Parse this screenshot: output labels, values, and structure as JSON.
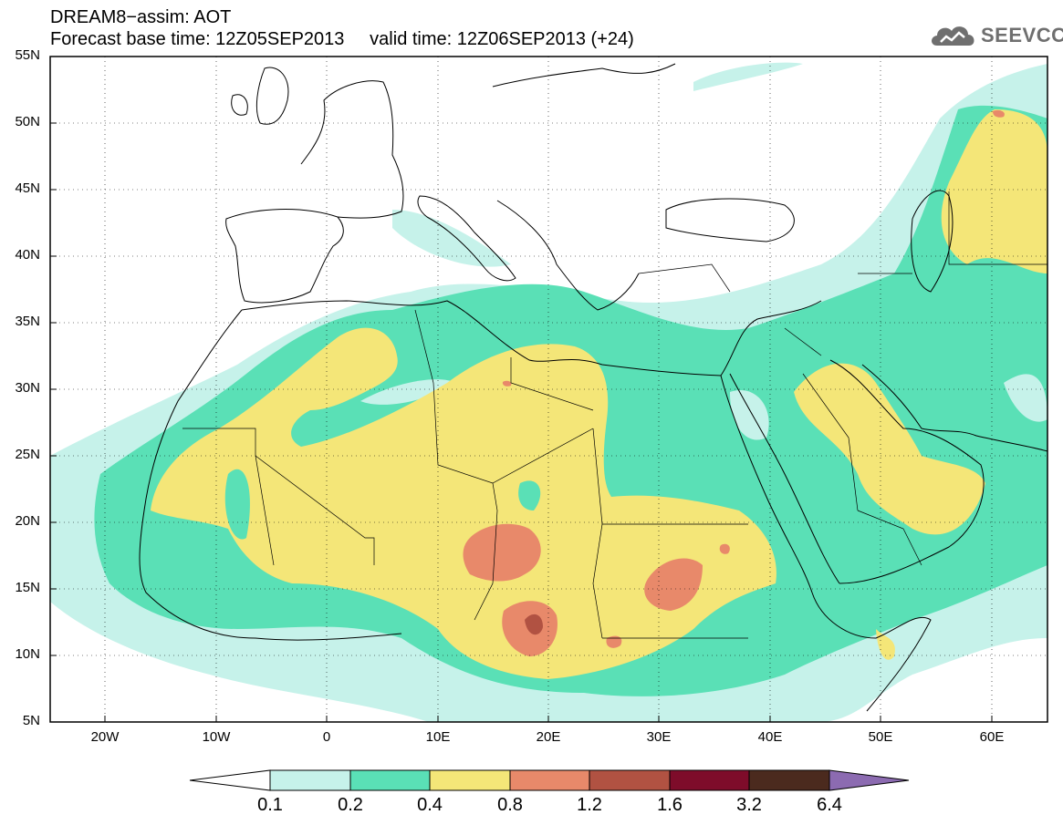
{
  "header": {
    "title_line1": "DREAM8−assim: AOT",
    "title_line2": "Forecast base time: 12Z05SEP2013     valid time: 12Z06SEP2013 (+24)",
    "logo_text": "SEEVCCC"
  },
  "map": {
    "lat_labels": [
      "55N",
      "50N",
      "45N",
      "40N",
      "35N",
      "30N",
      "25N",
      "20N",
      "15N",
      "10N",
      "5N"
    ],
    "lon_labels": [
      "20W",
      "10W",
      "0",
      "10E",
      "20E",
      "30E",
      "40E",
      "50E",
      "60E"
    ],
    "lat_range": [
      5,
      55
    ],
    "lon_range": [
      -25,
      65
    ]
  },
  "colorbar": {
    "labels": [
      "0.1",
      "0.2",
      "0.4",
      "0.8",
      "1.2",
      "1.6",
      "3.2",
      "6.4"
    ],
    "colors": [
      "#c6f2ea",
      "#5ae0b6",
      "#f4e678",
      "#e8896a",
      "#b15242",
      "#7e0c2a",
      "#4b2a1e"
    ],
    "under_color": "#ffffff",
    "over_color": "#8c6bb1"
  }
}
